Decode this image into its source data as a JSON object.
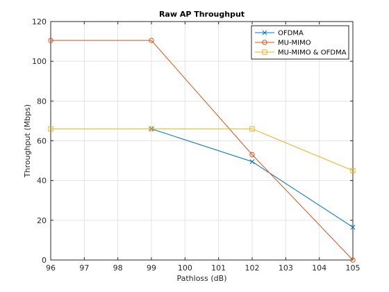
{
  "chart_data": {
    "type": "line",
    "title": "Raw AP Throughput",
    "xlabel": "Pathloss (dB)",
    "ylabel": "Throughput (Mbps)",
    "xlim": [
      96,
      105
    ],
    "ylim": [
      0,
      120
    ],
    "xticks": [
      96,
      97,
      98,
      99,
      100,
      101,
      102,
      103,
      104,
      105
    ],
    "yticks": [
      0,
      20,
      40,
      60,
      80,
      100,
      120
    ],
    "grid": true,
    "legend_position": "top-right",
    "series": [
      {
        "name": "OFDMA",
        "color": "#0072BD",
        "marker": "x",
        "x": [
          99,
          102,
          105
        ],
        "y": [
          66,
          49.5,
          16.5
        ]
      },
      {
        "name": "MU-MIMO",
        "color": "#D95319",
        "marker": "o",
        "x": [
          96,
          99,
          102,
          105
        ],
        "y": [
          110.5,
          110.5,
          53,
          0
        ]
      },
      {
        "name": "MU-MIMO & OFDMA",
        "color": "#EDB120",
        "marker": "s",
        "x": [
          96,
          99,
          102,
          105
        ],
        "y": [
          66,
          66,
          66,
          45
        ]
      }
    ]
  }
}
